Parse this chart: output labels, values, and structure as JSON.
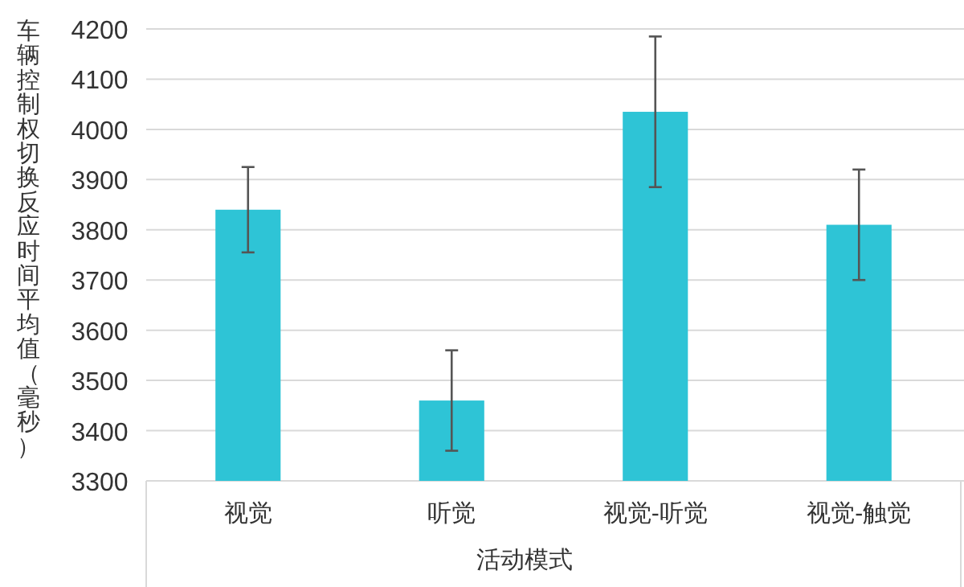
{
  "chart_data": {
    "type": "bar",
    "xlabel": "活动模式",
    "ylabel": "车辆控制权切换反应时间平均值（毫秒）",
    "categories": [
      "视觉",
      "听觉",
      "视觉-听觉",
      "视觉-触觉"
    ],
    "values": [
      3840,
      3460,
      4035,
      3810
    ],
    "errors": [
      85,
      100,
      150,
      110
    ],
    "color": "#2ec4d6",
    "ylim": [
      3300,
      4200
    ],
    "yticks": [
      3300,
      3400,
      3500,
      3600,
      3700,
      3800,
      3900,
      4000,
      4100,
      4200
    ],
    "grid": "y"
  }
}
